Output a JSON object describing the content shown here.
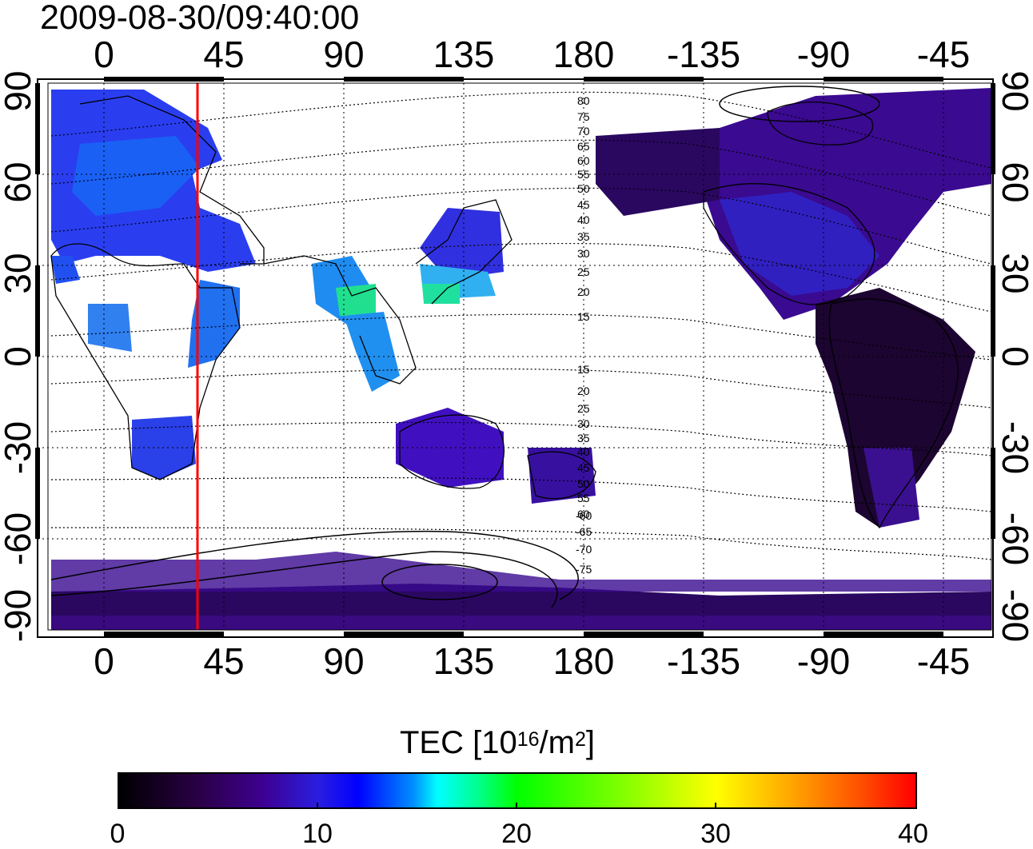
{
  "timestamp": "2009-08-30/09:40:00",
  "axes": {
    "lon_ticks_top": [
      "0",
      "45",
      "90",
      "135",
      "180",
      "-135",
      "-90",
      "-45"
    ],
    "lon_ticks_bottom": [
      "0",
      "45",
      "90",
      "135",
      "180",
      "-135",
      "-90",
      "-45"
    ],
    "lat_ticks_left": [
      "90",
      "60",
      "30",
      "0",
      "-30",
      "-60",
      "-90"
    ],
    "lat_ticks_right": [
      "90",
      "60",
      "30",
      "0",
      "-30",
      "-60",
      "-90"
    ]
  },
  "magnetic_lat_labels": [
    "80",
    "75",
    "70",
    "65",
    "60",
    "55",
    "50",
    "45",
    "40",
    "35",
    "30",
    "25",
    "20",
    "15",
    "15",
    "20",
    "25",
    "30",
    "35",
    "40",
    "45",
    "50",
    "55",
    "60",
    "-60",
    "-65",
    "-70",
    "-75"
  ],
  "colorbar": {
    "title_main": "TEC  [10",
    "title_exp1": "16",
    "title_mid": "/m",
    "title_exp2": "2",
    "title_end": "]",
    "ticks": [
      "0",
      "10",
      "20",
      "30",
      "40"
    ],
    "range": [
      0,
      40
    ]
  },
  "marker_line": {
    "longitude": 35,
    "color": "#ff0000"
  },
  "colors": {
    "frame": "#000000",
    "grid": "#000000"
  }
}
